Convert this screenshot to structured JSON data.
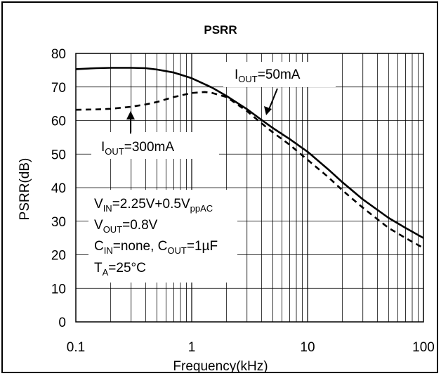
{
  "chart_data": {
    "type": "line",
    "title": "PSRR",
    "xlabel": "Frequency(kHz)",
    "ylabel": "PSRR(dB)",
    "x_scale": "log",
    "xlim": [
      0.1,
      100
    ],
    "ylim": [
      0,
      80
    ],
    "grid": true,
    "x_tick_labels": [
      "0.1",
      "1",
      "10",
      "100"
    ],
    "y_tick_labels": [
      "0",
      "10",
      "20",
      "30",
      "40",
      "50",
      "60",
      "70",
      "80"
    ],
    "series": [
      {
        "name": "IOUT=50mA",
        "style": "solid",
        "color": "#000000",
        "x": [
          0.1,
          0.15,
          0.2,
          0.3,
          0.4,
          0.5,
          0.7,
          1,
          1.5,
          2,
          3,
          4,
          5,
          7,
          10,
          15,
          20,
          30,
          50,
          70,
          100
        ],
        "y": [
          75.3,
          75.6,
          75.7,
          75.7,
          75.6,
          75.2,
          74.3,
          72.6,
          69.8,
          67.3,
          63.4,
          60.2,
          57.8,
          54.5,
          50.7,
          45.5,
          41.6,
          36.5,
          31.0,
          28.0,
          25.0
        ]
      },
      {
        "name": "IOUT=300mA",
        "style": "dashed",
        "color": "#000000",
        "x": [
          0.1,
          0.15,
          0.2,
          0.3,
          0.4,
          0.5,
          0.7,
          1,
          1.3,
          1.5,
          2,
          3,
          4,
          5,
          7,
          10,
          15,
          20,
          30,
          50,
          70,
          100
        ],
        "y": [
          63.2,
          63.3,
          63.5,
          64.1,
          64.8,
          65.5,
          67.0,
          68.2,
          68.5,
          68.2,
          67.0,
          62.8,
          59.2,
          56.5,
          52.8,
          48.3,
          43.2,
          39.2,
          34.0,
          28.0,
          25.0,
          22.0
        ]
      }
    ],
    "annotations": {
      "iout50": {
        "main": "I",
        "sub": "OUT",
        "rest": "=50mA"
      },
      "iout300": {
        "main": "I",
        "sub": "OUT",
        "rest": "=300mA"
      },
      "vin": {
        "main": "V",
        "sub": "IN",
        "rest": "=2.25V+0.5V",
        "sub2": "ppAC"
      },
      "vout": {
        "main": "V",
        "sub": "OUT",
        "rest": "=0.8V"
      },
      "cin": {
        "main": "C",
        "sub": "IN",
        "rest": "=none, C",
        "sub2": "OUT",
        "rest2": "=1µF"
      },
      "ta": {
        "main": "T",
        "sub": "A",
        "rest": "=25°C"
      }
    }
  }
}
